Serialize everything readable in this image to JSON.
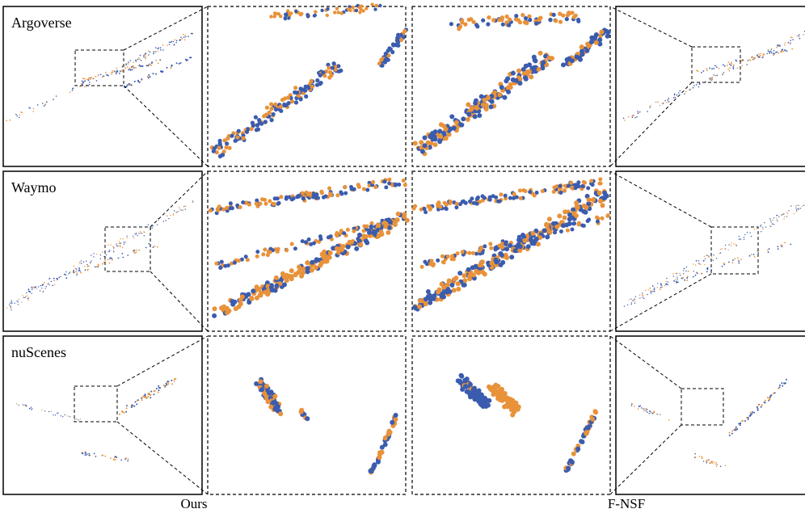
{
  "row_labels": [
    "Argoverse",
    "Waymo",
    "nuScenes"
  ],
  "column_labels": [
    "Ours",
    "F-NSF"
  ]
}
